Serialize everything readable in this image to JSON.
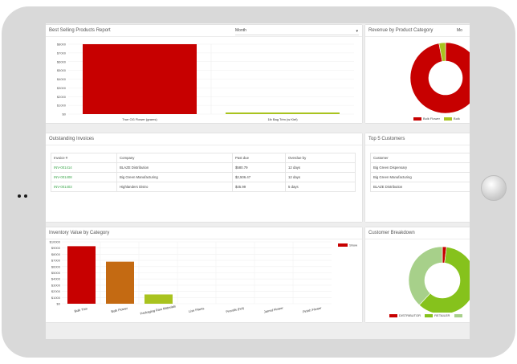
{
  "colors": {
    "red": "#c70000",
    "green_bar": "#a9c31f",
    "orange": "#c46a12",
    "link_green": "#3aa64a",
    "retailer_green": "#86c21c",
    "light_green": "#a7d08a"
  },
  "best_selling": {
    "title": "Best Selling Products Report",
    "filter_value": "Month",
    "chart_data": {
      "type": "bar",
      "categories": [
        "True OG Flower (grams)",
        "1lb Bag Trim (w Kief)"
      ],
      "values": [
        8000,
        100
      ],
      "ylim": [
        0,
        8000
      ],
      "yticks": [
        "$8000",
        "$7000",
        "$6000",
        "$5000",
        "$4000",
        "$3000",
        "$2000",
        "$1000",
        "$0"
      ]
    }
  },
  "revenue_category": {
    "title": "Revenue by Product Category",
    "filter_value": "Mo",
    "chart_data": {
      "type": "pie",
      "labels": [
        "Bulk Flower",
        "Bulk"
      ],
      "values": [
        97,
        3
      ]
    }
  },
  "outstanding_invoices": {
    "title": "Outstanding Invoices",
    "columns": [
      "Invoice #",
      "Company",
      "Past due",
      "Overdue by"
    ],
    "rows": [
      [
        "INV-001414",
        "BLAZE Distribution",
        "$580.79",
        "12 days"
      ],
      [
        "INV-001408",
        "Big Green Manufacturing",
        "$2,506.47",
        "12 days"
      ],
      [
        "INV-001403",
        "Highlanders Distro",
        "$45.99",
        "5 days"
      ]
    ]
  },
  "top_customers": {
    "title": "Top 5 Customers",
    "column": "Customer",
    "rows": [
      "Big Green Dispensary",
      "Big Green Manufacturing",
      "BLAZE Distribution"
    ]
  },
  "inventory_value": {
    "title": "Inventory Value by Category",
    "legend": "Show",
    "chart_data": {
      "type": "bar",
      "categories": [
        "Bulk Trim",
        "Bulk Flower",
        "Packaging Raw Materials",
        "Live Plants",
        "Prerolls (hot)",
        "Jarred Flower",
        "Finish Flower"
      ],
      "values": [
        9300,
        6800,
        1500,
        0,
        0,
        0,
        0
      ],
      "ylim": [
        0,
        10000
      ],
      "yticks": [
        "$10000",
        "$9000",
        "$8000",
        "$7000",
        "$6000",
        "$5000",
        "$4000",
        "$3000",
        "$2000",
        "$1000",
        "$0"
      ]
    }
  },
  "customer_breakdown": {
    "title": "Customer Breakdown",
    "chart_data": {
      "type": "pie",
      "labels": [
        "DISTRIBUTOR",
        "RETAILER",
        ""
      ],
      "values": [
        2,
        60,
        38
      ]
    }
  }
}
